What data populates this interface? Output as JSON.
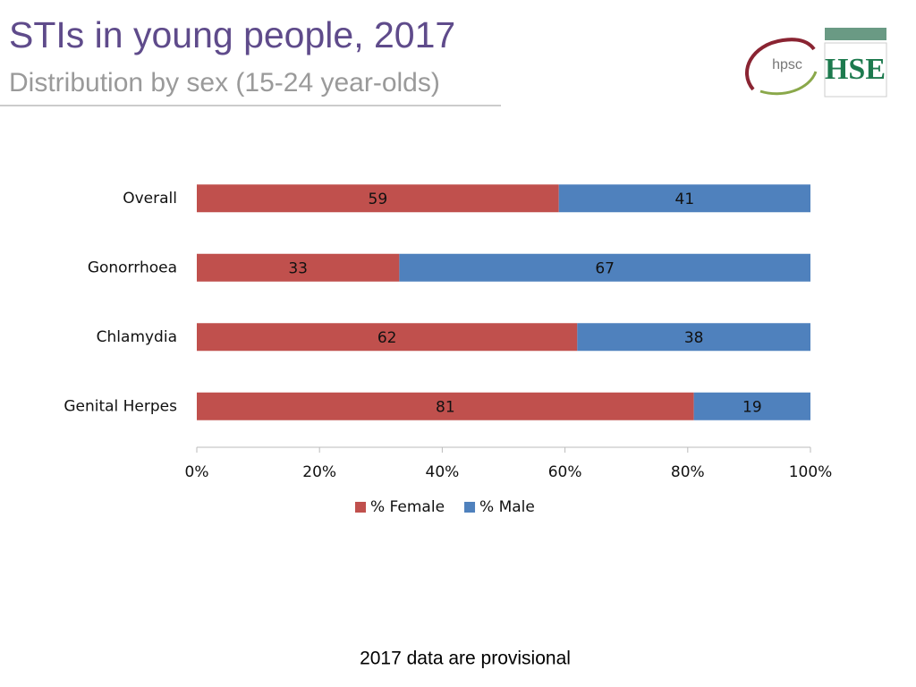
{
  "chart_data": {
    "type": "stacked_barh",
    "title": "STIs in young people, 2017",
    "subtitle": "Distribution by sex (15-24 year-olds)",
    "categories": [
      "Overall",
      "Gonorrhoea",
      "Chlamydia",
      "Genital Herpes"
    ],
    "series": [
      {
        "name": "% Female",
        "color": "#c0504d",
        "values": [
          59,
          33,
          62,
          81
        ]
      },
      {
        "name": "% Male",
        "color": "#4f81bd",
        "values": [
          41,
          67,
          38,
          19
        ]
      }
    ],
    "xlim": [
      0,
      100
    ],
    "xticks": [
      {
        "value": 0,
        "label": "0%"
      },
      {
        "value": 20,
        "label": "20%"
      },
      {
        "value": 40,
        "label": "40%"
      },
      {
        "value": 60,
        "label": "60%"
      },
      {
        "value": 80,
        "label": "80%"
      },
      {
        "value": 100,
        "label": "100%"
      }
    ],
    "legend": "bottom"
  },
  "footnote": "2017 data are provisional",
  "logos": {
    "hpsc": "hpsc",
    "hse": "HSE"
  }
}
